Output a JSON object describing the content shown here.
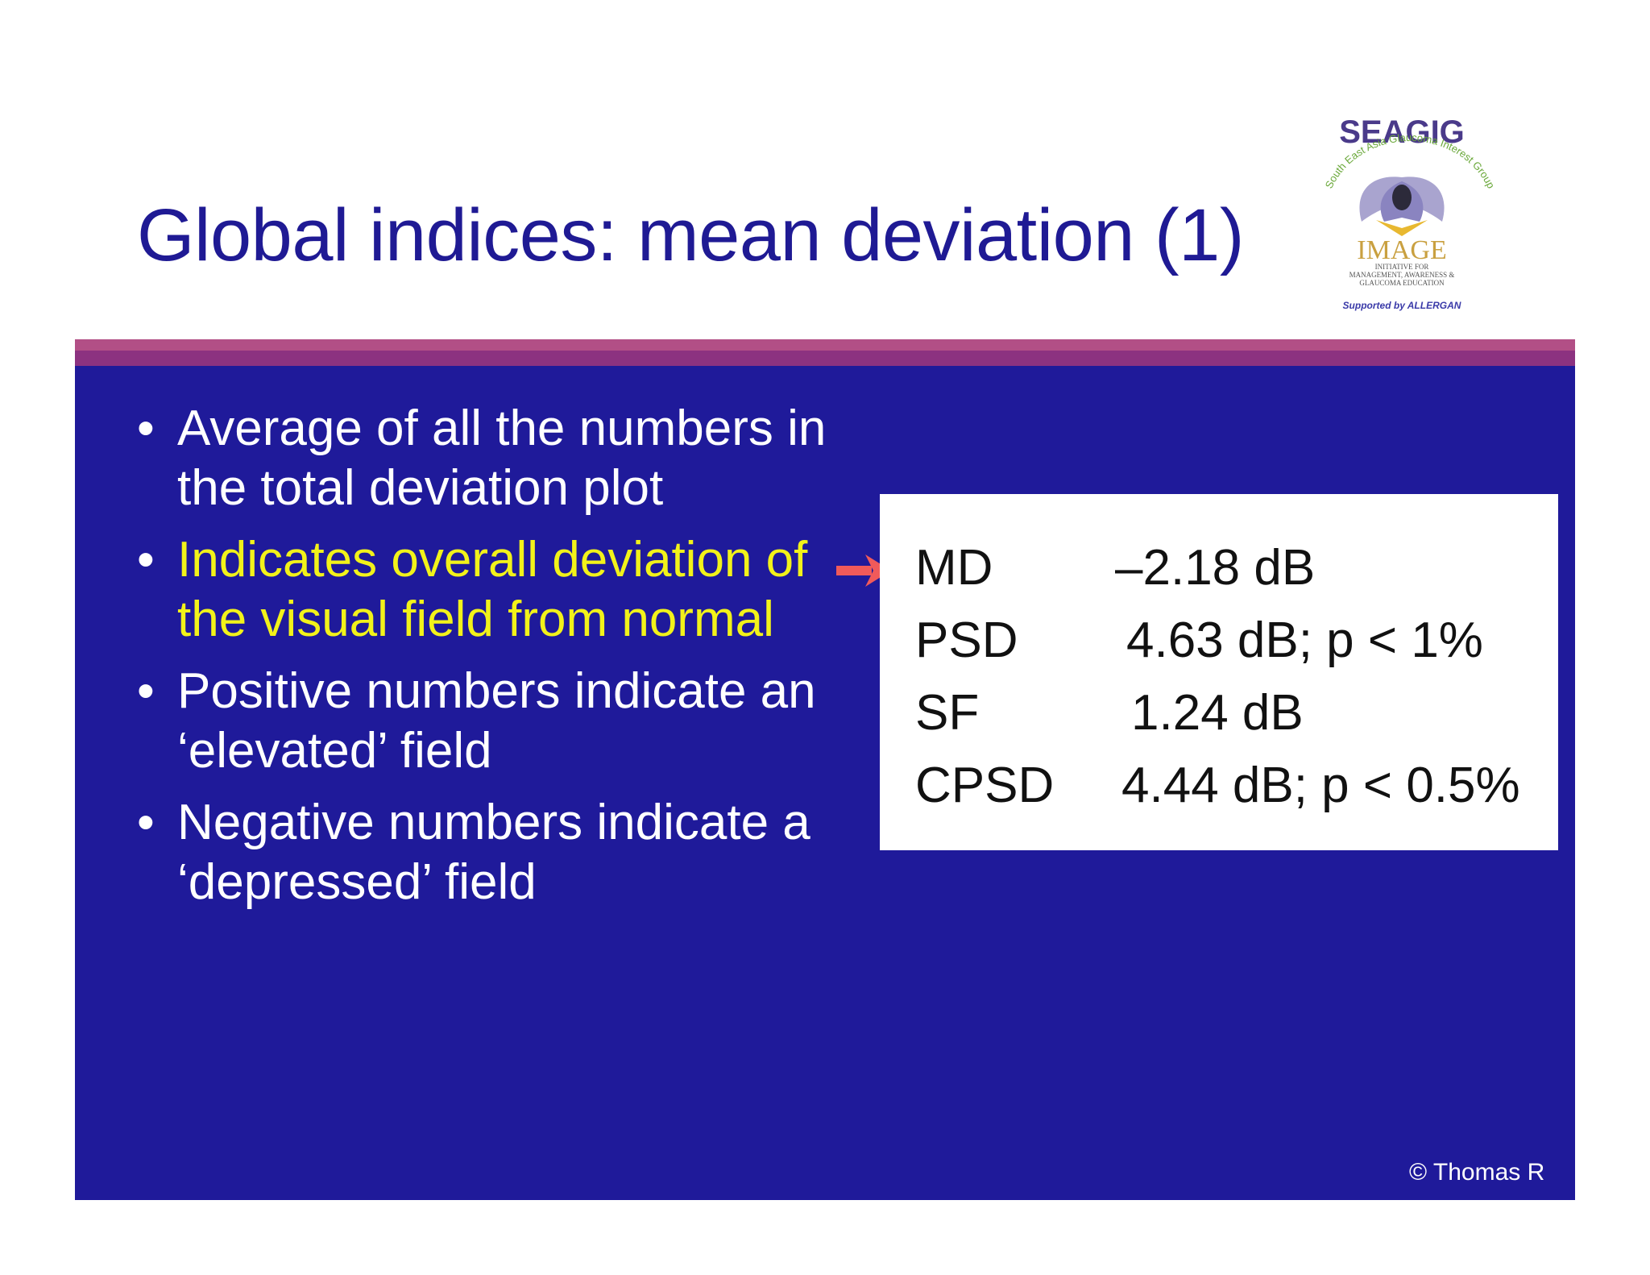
{
  "slide": {
    "title": "Global indices: mean deviation (1)",
    "bullets": [
      {
        "text": "Average of all the numbers in the total deviation plot",
        "highlighted": false
      },
      {
        "text": "Indicates overall deviation of the visual field from normal",
        "highlighted": true
      },
      {
        "text": "Positive numbers indicate an ‘elevated’ field",
        "highlighted": false
      },
      {
        "text": "Negative numbers indicate a ‘depressed’ field",
        "highlighted": false
      }
    ],
    "bullet_glyph": "•",
    "stats": [
      {
        "label": "MD",
        "value": "–2.18 dB"
      },
      {
        "label": "PSD",
        "value": "4.63 dB;  p < 1%"
      },
      {
        "label": "SF",
        "value": "1.24 dB"
      },
      {
        "label": "CPSD",
        "value": "4.44 dB;  p < 0.5%"
      }
    ],
    "pointer_icon": "right-arrow-icon",
    "copyright": "© Thomas R"
  },
  "logo": {
    "top_text": "SEAGIG",
    "arc_text": "South East Asia Glaucoma Interest Group",
    "main_text": "IMAGE",
    "sub_text_1": "INITIATIVE FOR",
    "sub_text_2": "MANAGEMENT, AWARENESS &",
    "sub_text_3": "GLAUCOMA EDUCATION",
    "supported_text": "Supported by ALLERGAN"
  },
  "colors": {
    "title": "#1f1a94",
    "panel": "#1f1a9a",
    "stripe_light": "#b24f86",
    "stripe_dark": "#8c3280",
    "highlight_text": "#f2f21a",
    "arrow": "#f05a5a"
  }
}
